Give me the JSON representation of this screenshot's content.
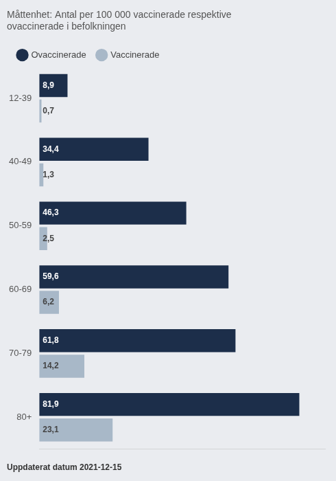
{
  "chart_data": {
    "type": "bar",
    "orientation": "horizontal",
    "title": [
      "Måttenhet: Antal per 100 000 vaccinerade respektive",
      "ovaccinerade i befolkningen"
    ],
    "annotations": [
      "Uppdaterat datum 2021-12-15"
    ],
    "categories": [
      "12-39",
      "40-49",
      "50-59",
      "60-69",
      "70-79",
      "80+"
    ],
    "series": [
      {
        "name": "Ovaccinerade",
        "color": "#1c2e4a",
        "values": [
          8.9,
          34.4,
          46.3,
          59.6,
          61.8,
          81.9
        ],
        "value_labels": [
          "8,9",
          "34,4",
          "46,3",
          "59,6",
          "61,8",
          "81,9"
        ]
      },
      {
        "name": "Vaccinerade",
        "color": "#a8b8c8",
        "values": [
          0.7,
          1.3,
          2.5,
          6.2,
          14.2,
          23.1
        ],
        "value_labels": [
          "0,7",
          "1,3",
          "2,5",
          "6,2",
          "14,2",
          "23,1"
        ]
      }
    ],
    "xlim": [
      0,
      90
    ],
    "data_labels": true,
    "tick_labels": "y",
    "grid": false,
    "legend": "top"
  }
}
